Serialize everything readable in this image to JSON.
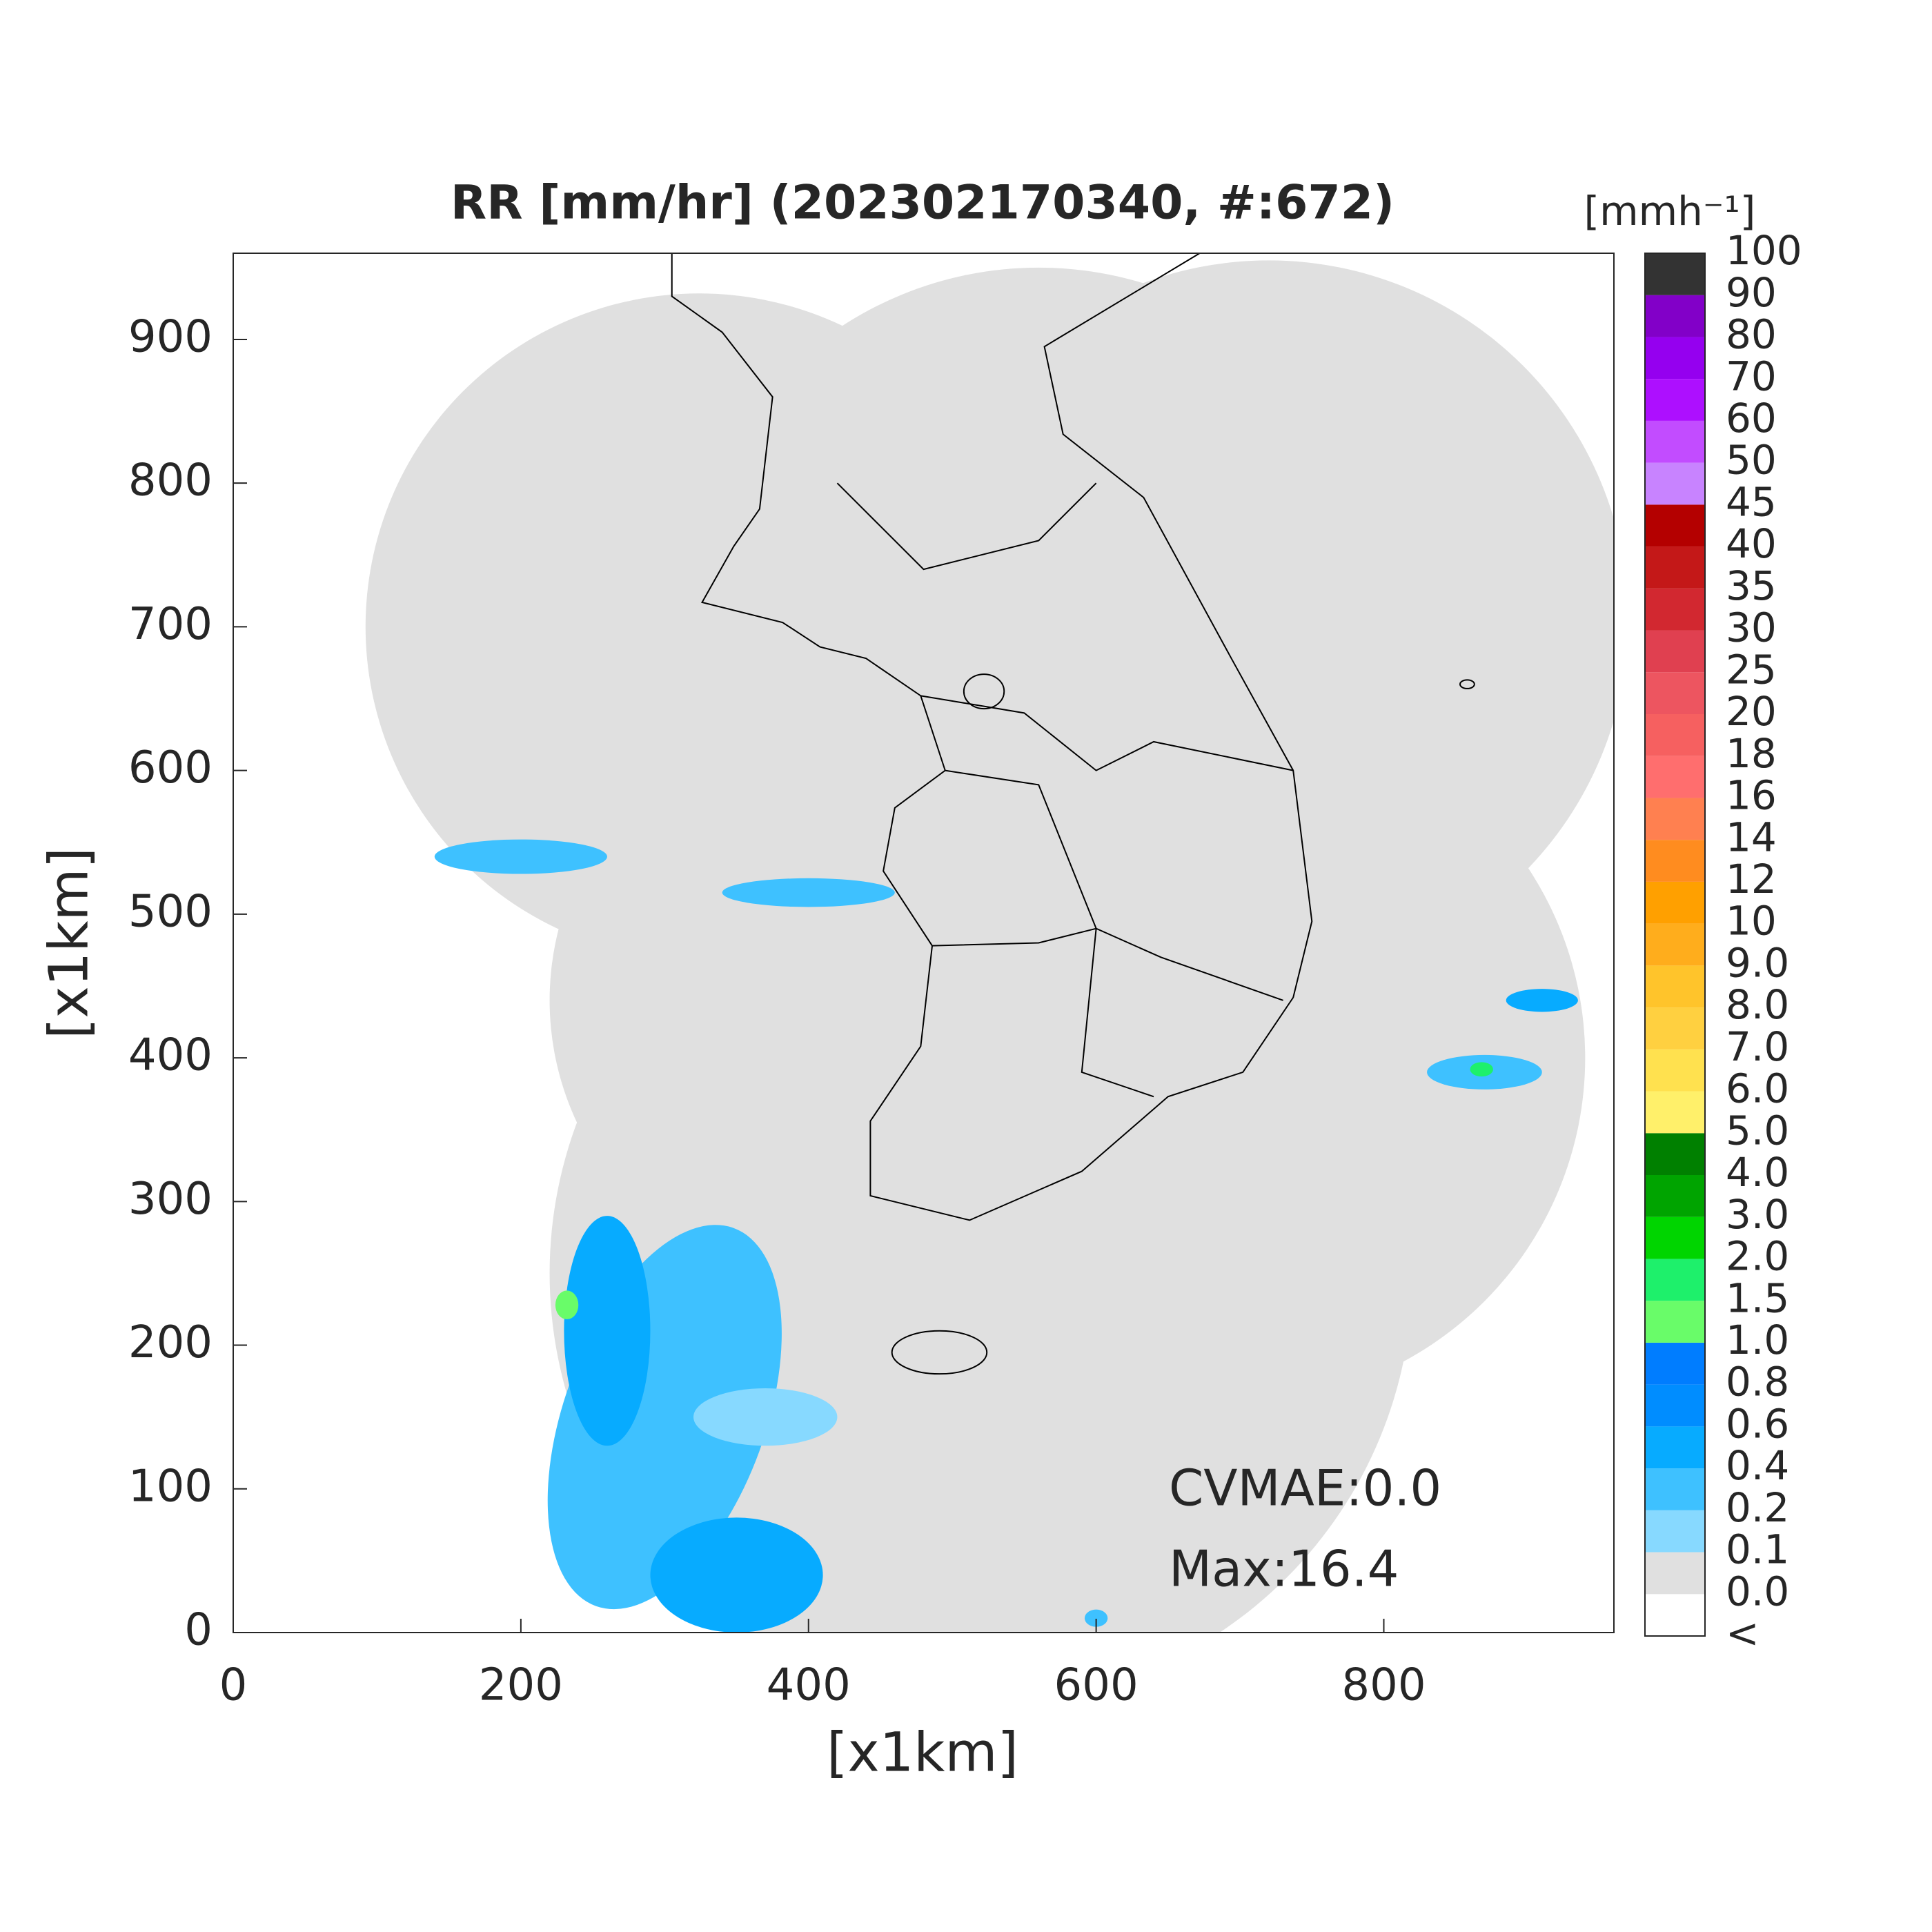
{
  "chart_data": {
    "type": "map",
    "title": "RR [mm/hr] (202302170340, #:672)",
    "xlabel": "[x1km]",
    "ylabel": "[x1km]",
    "xlim": [
      0,
      960
    ],
    "ylim": [
      0,
      960
    ],
    "xticks": [
      0,
      200,
      400,
      600,
      800
    ],
    "yticks": [
      0,
      100,
      200,
      300,
      400,
      500,
      600,
      700,
      800,
      900
    ],
    "grid": false,
    "annotations": [
      "CVMAE:0.0",
      "Max:16.4"
    ],
    "colorbar": {
      "label": "[mmh⁻¹]",
      "levels": [
        "<",
        {
          "value": 0,
          "label": "0.0"
        },
        0.1,
        0.2,
        0.4,
        0.6,
        0.8,
        {
          "value": 1,
          "label": "1.0"
        },
        1.5,
        {
          "value": 2,
          "label": "2.0"
        },
        {
          "value": 3,
          "label": "3.0"
        },
        {
          "value": 4,
          "label": "4.0"
        },
        {
          "value": 5,
          "label": "5.0"
        },
        {
          "value": 6,
          "label": "6.0"
        },
        {
          "value": 7,
          "label": "7.0"
        },
        {
          "value": 8,
          "label": "8.0"
        },
        {
          "value": 9,
          "label": "9.0"
        },
        10,
        12,
        14,
        16,
        18,
        20,
        25,
        30,
        35,
        40,
        45,
        50,
        60,
        70,
        80,
        90,
        100
      ],
      "colors": [
        "#ffffff",
        "#e0e0e0",
        "#87d9ff",
        "#3ec1ff",
        "#07abff",
        "#008dff",
        "#007dff",
        "#69fc69",
        "#1ef06b",
        "#00d500",
        "#00a400",
        "#008000",
        "#fff06a",
        "#ffe14f",
        "#ffd040",
        "#ffc42b",
        "#ffad1c",
        "#ffa000",
        "#ff8c1f",
        "#ff8050",
        "#ff6e6e",
        "#f66060",
        "#ed5560",
        "#e04050",
        "#d22830",
        "#c41818",
        "#b40000",
        "#c883ff",
        "#c24cff",
        "#ad0fff",
        "#9500ef",
        "#8200c8",
        "#333333"
      ]
    }
  }
}
